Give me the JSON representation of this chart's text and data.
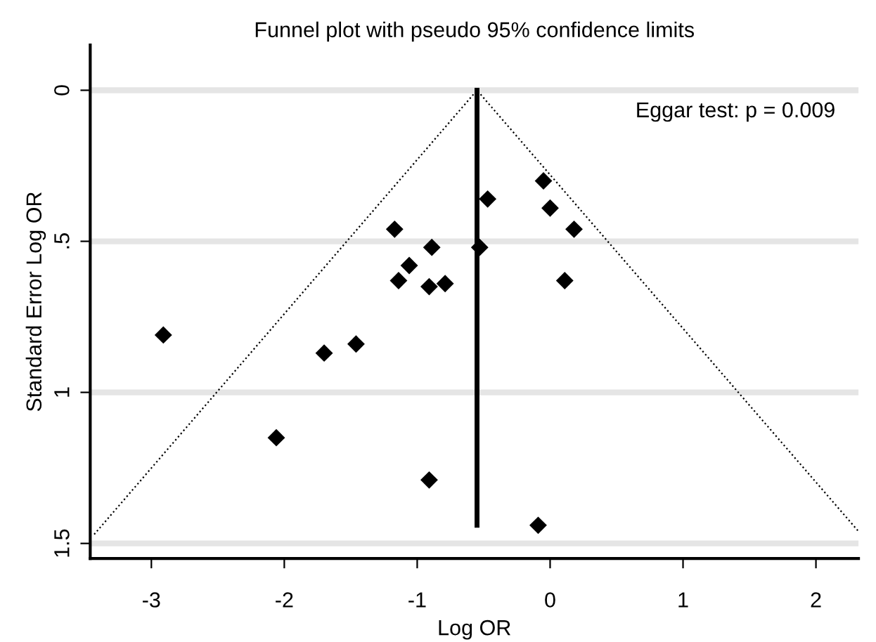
{
  "chart_data": {
    "type": "scatter",
    "title": "Funnel plot with pseudo 95% confidence limits",
    "xlabel": "Log OR",
    "ylabel": "Standard Error Log OR",
    "annotations": [
      "Eggar test: p = 0.009"
    ],
    "series": [
      {
        "color": "#000000",
        "marker": "diamond",
        "x": [
          -0.47,
          -1.17,
          -0.89,
          -0.53,
          -1.06,
          -1.14,
          -0.91,
          -0.79,
          -2.91,
          -1.7,
          -1.46,
          -2.06,
          -0.91,
          -0.05,
          0.0,
          0.18,
          0.11,
          -0.09
        ],
        "values": [
          0.36,
          0.46,
          0.52,
          0.52,
          0.58,
          0.63,
          0.65,
          0.64,
          0.81,
          0.87,
          0.84,
          1.15,
          1.29,
          0.3,
          0.39,
          0.46,
          0.63,
          1.44
        ]
      },
      {
        "type": "line",
        "color": "#000000",
        "line_style": "dotted",
        "x": [
          -3.43,
          -0.55,
          2.32
        ],
        "values": [
          1.47,
          0,
          1.46
        ]
      },
      {
        "type": "line",
        "color": "#000000",
        "line_style": "solid",
        "x": [
          -0.55,
          -0.55
        ],
        "values": [
          0,
          1.44
        ]
      }
    ],
    "xlim": [
      -3.46,
      2.32
    ],
    "ylim": [
      1.55,
      -0.15
    ],
    "xticks": [
      -3,
      -2,
      -1,
      0,
      1,
      2
    ],
    "yticks": [
      0,
      {
        "value": 0.5,
        "label": ".5"
      },
      1,
      1.5
    ],
    "grid": "y",
    "legend": false
  }
}
